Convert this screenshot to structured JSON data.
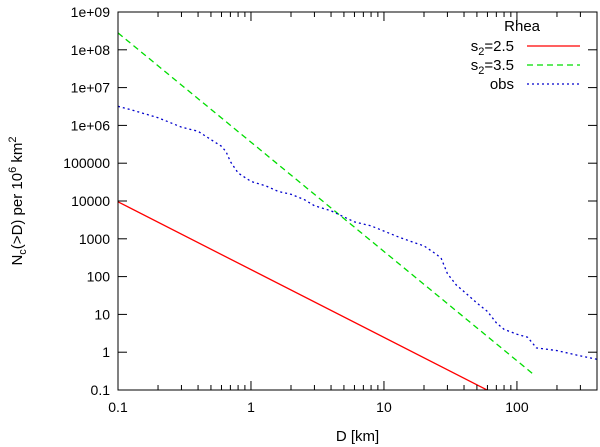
{
  "chart_data": {
    "type": "line",
    "title": "",
    "xlabel": "D [km]",
    "ylabel_parts": {
      "main": "N",
      "sub": "c",
      "mid": "(>D) per 10",
      "sup1": "6",
      "unit": " km",
      "sup2": "2"
    },
    "x_scale": "log",
    "y_scale": "log",
    "xlim": [
      0.1,
      400
    ],
    "ylim": [
      0.1,
      1000000000
    ],
    "x_ticks": [
      {
        "value": 0.1,
        "label": "0.1"
      },
      {
        "value": 1,
        "label": "1"
      },
      {
        "value": 10,
        "label": "10"
      },
      {
        "value": 100,
        "label": "100"
      }
    ],
    "y_ticks": [
      {
        "value": 0.1,
        "label": "0.1"
      },
      {
        "value": 1,
        "label": "1"
      },
      {
        "value": 10,
        "label": "10"
      },
      {
        "value": 100,
        "label": "100"
      },
      {
        "value": 1000,
        "label": "1000"
      },
      {
        "value": 10000,
        "label": "10000"
      },
      {
        "value": 100000,
        "label": "100000"
      },
      {
        "value": 1000000,
        "label": "1e+06"
      },
      {
        "value": 10000000,
        "label": "1e+07"
      },
      {
        "value": 100000000,
        "label": "1e+08"
      },
      {
        "value": 1000000000,
        "label": "1e+09"
      }
    ],
    "grid": false,
    "legend_position": "top-right",
    "legend_title": "Rhea",
    "series": [
      {
        "name_main": "s",
        "name_sub": "2",
        "name_rest": "=2.5",
        "color": "#ff0000",
        "dash": "solid",
        "x": [
          0.1,
          70
        ],
        "y": [
          9500,
          0.075
        ]
      },
      {
        "name_main": "s",
        "name_sub": "2",
        "name_rest": "=3.5",
        "color": "#00dd00",
        "dash": "dashed",
        "x": [
          0.1,
          135
        ],
        "y": [
          280000000,
          0.25
        ]
      },
      {
        "name_main": "obs",
        "name_sub": "",
        "name_rest": "",
        "color": "#0000cc",
        "dash": "dotted",
        "x": [
          0.1,
          0.13,
          0.2,
          0.3,
          0.4,
          0.5,
          0.6,
          0.65,
          0.7,
          0.8,
          1.0,
          1.3,
          1.6,
          2.0,
          2.5,
          3,
          4,
          5,
          6,
          8,
          10,
          13,
          16,
          20,
          25,
          27,
          30,
          35,
          40,
          50,
          60,
          70,
          80,
          100,
          120,
          130,
          140,
          200,
          300,
          400
        ],
        "y": [
          3200000,
          2500000,
          1600000,
          900000,
          700000,
          420000,
          280000,
          200000,
          110000,
          55000,
          33000,
          25000,
          18000,
          15000,
          11000,
          7500,
          5500,
          3800,
          2800,
          2200,
          1600,
          1100,
          850,
          650,
          380,
          300,
          120,
          60,
          40,
          20,
          12,
          6,
          4,
          3,
          2.5,
          1.8,
          1.3,
          1.1,
          0.8,
          0.65
        ]
      }
    ]
  }
}
